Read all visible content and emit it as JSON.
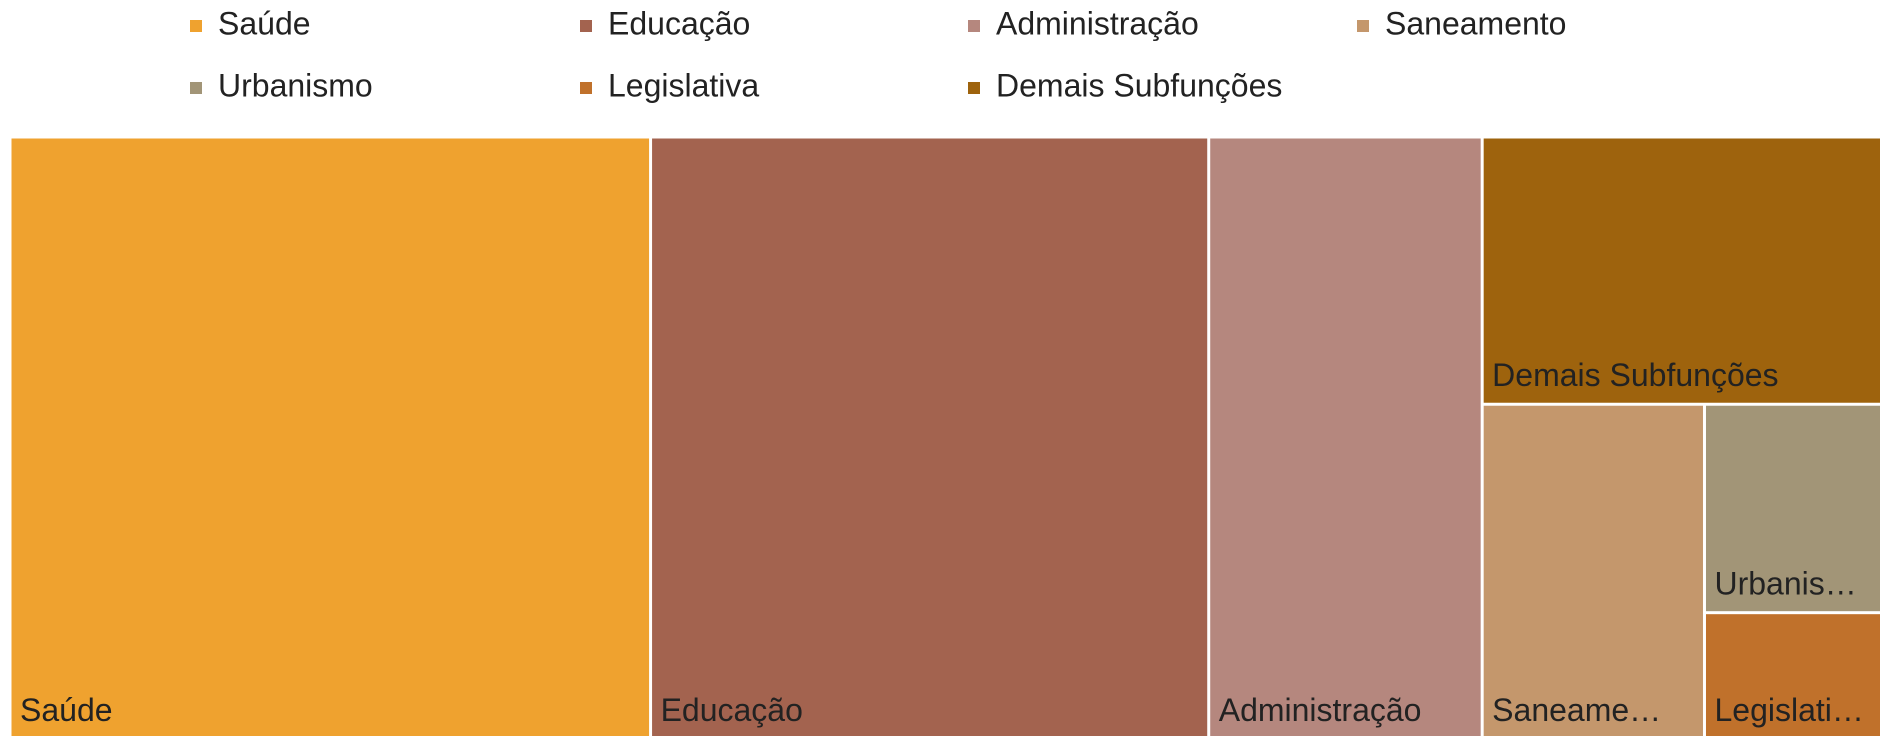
{
  "chart_data": {
    "type": "treemap",
    "categories": [
      "Saúde",
      "Educação",
      "Administração",
      "Saneamento",
      "Urbanismo",
      "Legislativa",
      "Demais Subfunções"
    ],
    "tile_labels": [
      "Saúde",
      "Educação",
      "Administração",
      "Saneame…",
      "Urbanis…",
      "Legislati…",
      "Demais Subfunções"
    ],
    "values": [
      34.2,
      29.8,
      14.6,
      6.6,
      3.3,
      2.0,
      9.5
    ],
    "colors": [
      "#efa22f",
      "#a3634f",
      "#b5877e",
      "#c4976c",
      "#a29577",
      "#c0712b",
      "#9e630d"
    ],
    "legend": "top"
  }
}
